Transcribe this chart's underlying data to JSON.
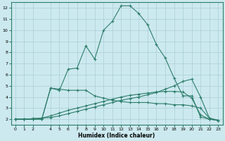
{
  "xlabel": "Humidex (Indice chaleur)",
  "x": [
    0,
    1,
    2,
    3,
    4,
    5,
    6,
    7,
    8,
    9,
    10,
    11,
    12,
    13,
    14,
    15,
    16,
    17,
    18,
    19,
    20,
    21,
    22,
    23
  ],
  "line1": [
    2,
    2,
    2,
    2,
    4.8,
    4.6,
    6.5,
    6.6,
    8.6,
    7.4,
    10.0,
    10.8,
    12.2,
    12.2,
    11.5,
    10.5,
    8.7,
    7.5,
    5.7,
    4.1,
    4.1,
    2.2,
    2.0,
    1.9
  ],
  "line2": [
    2,
    2,
    2,
    2,
    4.8,
    4.7,
    4.6,
    4.6,
    4.6,
    4.1,
    3.9,
    3.7,
    3.6,
    3.5,
    3.5,
    3.5,
    3.4,
    3.4,
    3.3,
    3.3,
    3.2,
    3.0,
    2.1,
    1.9
  ],
  "line3": [
    2,
    2,
    2.05,
    2.1,
    2.15,
    2.3,
    2.5,
    2.7,
    2.9,
    3.1,
    3.3,
    3.5,
    3.7,
    3.85,
    4.0,
    4.2,
    4.4,
    4.7,
    5.0,
    5.4,
    5.6,
    4.0,
    2.1,
    1.9
  ],
  "line4": [
    2,
    2,
    2.05,
    2.1,
    2.3,
    2.55,
    2.8,
    3.0,
    3.2,
    3.4,
    3.6,
    3.8,
    4.0,
    4.15,
    4.25,
    4.35,
    4.45,
    4.5,
    4.5,
    4.45,
    3.9,
    2.4,
    2.0,
    1.9
  ],
  "line_color": "#2e7d6b",
  "bg_color": "#cce9ef",
  "grid_color": "#aacdd6",
  "ylim": [
    1.5,
    12.5
  ],
  "xlim": [
    -0.5,
    23.5
  ],
  "yticks": [
    2,
    3,
    4,
    5,
    6,
    7,
    8,
    9,
    10,
    11,
    12
  ],
  "xticks": [
    0,
    1,
    2,
    4,
    5,
    6,
    7,
    8,
    9,
    10,
    11,
    12,
    13,
    14,
    15,
    16,
    17,
    18,
    19,
    20,
    21,
    22,
    23
  ]
}
